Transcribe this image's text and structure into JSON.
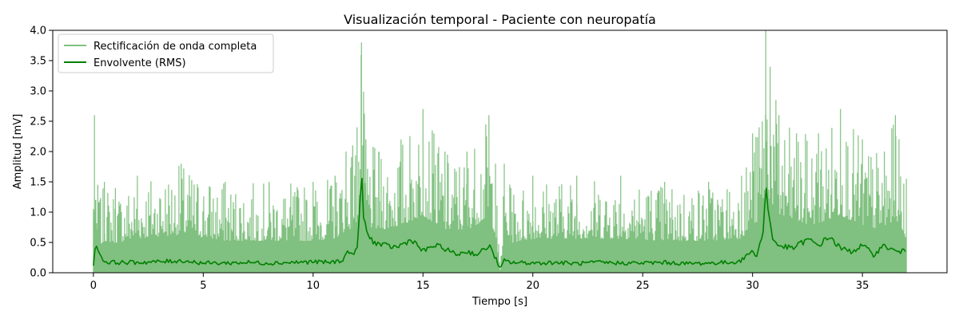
{
  "chart_data": {
    "type": "line",
    "title": "Visualización temporal - Paciente con neuropatía",
    "xlabel": "Tiempo [s]",
    "ylabel": "Amplitud [mV]",
    "xlim": [
      -1.85,
      38.85
    ],
    "ylim": [
      0,
      4.0
    ],
    "x_ticks": [
      0,
      5,
      10,
      15,
      20,
      25,
      30,
      35
    ],
    "y_ticks": [
      0.0,
      0.5,
      1.0,
      1.5,
      2.0,
      2.5,
      3.0,
      3.5,
      4.0
    ],
    "x_tick_labels": [
      "0",
      "5",
      "10",
      "15",
      "20",
      "25",
      "30",
      "35"
    ],
    "y_tick_labels": [
      "0.0",
      "0.5",
      "1.0",
      "1.5",
      "2.0",
      "2.5",
      "3.0",
      "3.5",
      "4.0"
    ],
    "grid": false,
    "legend_position": "top-left",
    "series": [
      {
        "name": "Rectificación de onda completa",
        "color": "#80c080",
        "style": "dense-signal",
        "envelope_x": [
          0,
          0.05,
          0.1,
          0.2,
          0.3,
          0.5,
          1,
          2,
          4,
          6,
          8,
          10,
          11,
          11.5,
          11.8,
          12.0,
          12.2,
          12.4,
          13,
          14,
          15,
          15.5,
          16,
          17,
          18,
          18.3,
          18.5,
          18.7,
          19,
          20,
          22,
          24,
          26,
          28,
          29.5,
          30.0,
          30.3,
          30.6,
          30.8,
          31.2,
          32,
          33,
          34,
          35,
          36,
          36.5,
          37.0
        ],
        "envelope_y": [
          1.05,
          2.6,
          1.2,
          1.45,
          1.2,
          1.5,
          1.4,
          1.6,
          1.8,
          1.5,
          1.5,
          1.5,
          1.6,
          2.0,
          2.1,
          2.4,
          3.8,
          2.2,
          2.0,
          2.2,
          2.7,
          2.3,
          2.0,
          2.0,
          2.6,
          1.8,
          0.0,
          1.8,
          1.4,
          1.6,
          1.6,
          1.6,
          1.5,
          1.5,
          1.6,
          2.3,
          2.4,
          4.0,
          3.4,
          2.6,
          2.3,
          2.3,
          2.7,
          2.2,
          2.0,
          2.6,
          1.55
        ]
      },
      {
        "name": "Envolvente (RMS)",
        "color": "#008000",
        "x": [
          0,
          0.1,
          0.2,
          0.3,
          0.5,
          1,
          2,
          3,
          4,
          5,
          6,
          7,
          8,
          9,
          10,
          10.8,
          11.3,
          11.6,
          11.9,
          12.0,
          12.1,
          12.2,
          12.3,
          12.5,
          12.8,
          13.2,
          13.8,
          14.5,
          15,
          15.5,
          16,
          16.5,
          17,
          17.5,
          18,
          18.3,
          18.5,
          18.7,
          19,
          20,
          21,
          22,
          23,
          24,
          25,
          26,
          27,
          28,
          29,
          29.5,
          29.9,
          30.2,
          30.5,
          30.6,
          30.7,
          30.9,
          31.2,
          31.8,
          32.5,
          33,
          33.5,
          34,
          34.5,
          35,
          35.5,
          36,
          36.5,
          37.0
        ],
        "y": [
          0.1,
          0.45,
          0.42,
          0.3,
          0.18,
          0.17,
          0.17,
          0.18,
          0.2,
          0.16,
          0.16,
          0.17,
          0.16,
          0.17,
          0.18,
          0.17,
          0.2,
          0.35,
          0.3,
          0.45,
          0.9,
          1.62,
          0.9,
          0.6,
          0.5,
          0.45,
          0.42,
          0.55,
          0.35,
          0.45,
          0.4,
          0.3,
          0.35,
          0.3,
          0.45,
          0.25,
          0.05,
          0.2,
          0.17,
          0.16,
          0.17,
          0.15,
          0.17,
          0.16,
          0.16,
          0.17,
          0.15,
          0.16,
          0.17,
          0.2,
          0.35,
          0.3,
          0.7,
          1.45,
          1.1,
          0.55,
          0.45,
          0.4,
          0.55,
          0.45,
          0.6,
          0.4,
          0.35,
          0.45,
          0.3,
          0.45,
          0.35,
          0.35
        ]
      }
    ]
  }
}
